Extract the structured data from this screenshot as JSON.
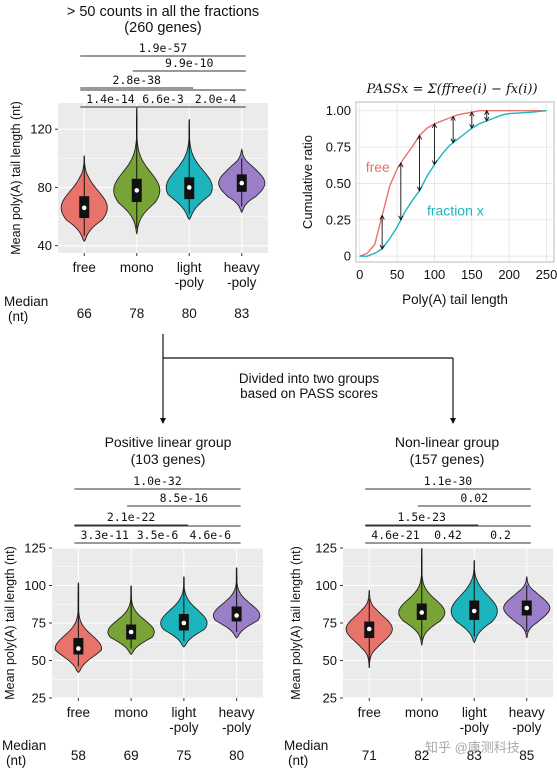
{
  "top_title": {
    "line1": "> 50 counts in all the fractions",
    "line2": "(260 genes)"
  },
  "arrow_text": {
    "line1": "Divided into two groups",
    "line2": "based on PASS scores"
  },
  "median_label": {
    "line1": "Median",
    "line2": "(nt)"
  },
  "colors": {
    "free": "#e8736b",
    "mono": "#78a437",
    "light": "#1cb5bd",
    "heavy": "#9b7ec8",
    "panel": "#ebebeb",
    "grid": "#ffffff"
  },
  "watermark": "知乎 @康测科技",
  "chart_data": [
    {
      "id": "top",
      "type": "violin",
      "ylabel": "Mean poly(A) tail length (nt)",
      "ylim": [
        35,
        138
      ],
      "yticks": [
        40,
        80,
        120
      ],
      "categories": [
        "free",
        "mono",
        "light\n-poly",
        "heavy\n-poly"
      ],
      "medians": [
        66,
        78,
        80,
        83
      ],
      "q1": [
        59,
        70,
        72,
        77
      ],
      "q3": [
        74,
        86,
        87,
        89
      ],
      "min": [
        43,
        48,
        58,
        63
      ],
      "max": [
        102,
        135,
        127,
        106
      ],
      "pvalues": [
        {
          "from": 0,
          "to": 3,
          "label": "1.9e-57"
        },
        {
          "from": 1,
          "to": 3,
          "label": "9.9e-10"
        },
        {
          "from": 0,
          "to": 2,
          "label": "2.8e-38"
        },
        {
          "from": 0,
          "to": 1,
          "label": "1.4e-14"
        },
        {
          "from": 1,
          "to": 2,
          "label": "6.6e-3"
        },
        {
          "from": 2,
          "to": 3,
          "label": "2.0e-4"
        }
      ]
    },
    {
      "id": "left",
      "type": "violin",
      "title": "Positive linear group",
      "subtitle": "(103 genes)",
      "ylabel": "Mean poly(A) tail length (nt)",
      "ylim": [
        25,
        125
      ],
      "yticks": [
        25,
        50,
        75,
        100,
        125
      ],
      "categories": [
        "free",
        "mono",
        "light\n-poly",
        "heavy\n-poly"
      ],
      "medians": [
        58,
        69,
        75,
        80
      ],
      "q1": [
        54,
        64,
        70,
        76
      ],
      "q3": [
        65,
        74,
        81,
        86
      ],
      "min": [
        42,
        54,
        59,
        65
      ],
      "max": [
        102,
        100,
        106,
        112
      ],
      "pvalues": [
        {
          "from": 0,
          "to": 3,
          "label": "1.0e-32"
        },
        {
          "from": 1,
          "to": 3,
          "label": "8.5e-16"
        },
        {
          "from": 0,
          "to": 2,
          "label": "2.1e-22"
        },
        {
          "from": 0,
          "to": 1,
          "label": "3.3e-11"
        },
        {
          "from": 1,
          "to": 2,
          "label": "3.5e-6"
        },
        {
          "from": 2,
          "to": 3,
          "label": "4.6e-6"
        }
      ]
    },
    {
      "id": "right",
      "type": "violin",
      "title": "Non-linear group",
      "subtitle": "(157 genes)",
      "ylabel": "Mean poly(A) tail length (nt)",
      "ylim": [
        25,
        125
      ],
      "yticks": [
        25,
        50,
        75,
        100,
        125
      ],
      "categories": [
        "free",
        "mono",
        "light\n-poly",
        "heavy\n-poly"
      ],
      "medians": [
        71,
        82,
        83,
        85
      ],
      "q1": [
        65,
        77,
        77,
        80
      ],
      "q3": [
        76,
        88,
        90,
        90
      ],
      "min": [
        45,
        60,
        62,
        65
      ],
      "max": [
        97,
        125,
        117,
        106
      ],
      "pvalues": [
        {
          "from": 0,
          "to": 3,
          "label": "1.1e-30"
        },
        {
          "from": 1,
          "to": 3,
          "label": "0.02"
        },
        {
          "from": 0,
          "to": 2,
          "label": "1.5e-23"
        },
        {
          "from": 0,
          "to": 1,
          "label": "4.6e-21"
        },
        {
          "from": 1,
          "to": 2,
          "label": "0.42"
        },
        {
          "from": 2,
          "to": 3,
          "label": "0.2"
        }
      ]
    },
    {
      "id": "cdf",
      "type": "line",
      "formula": "PASSx = Σ(ffree(i) − fx(i))",
      "xlabel": "Poly(A) tail length",
      "ylabel": "Cumulative ratio",
      "xlim": [
        -5,
        260
      ],
      "ylim": [
        -0.04,
        1.06
      ],
      "xticks": [
        0,
        50,
        100,
        150,
        200,
        250
      ],
      "yticks": [
        0,
        0.25,
        0.5,
        0.75,
        1.0
      ],
      "ytick_labels": [
        "0",
        "0.25",
        "0.50",
        "0.75",
        "1.00"
      ],
      "series": [
        {
          "name": "free",
          "color": "#e8736b",
          "x": [
            0,
            10,
            20,
            30,
            40,
            50,
            60,
            70,
            80,
            90,
            100,
            110,
            120,
            130,
            140,
            150,
            160,
            170,
            180,
            200,
            250
          ],
          "y": [
            0,
            0.02,
            0.08,
            0.28,
            0.48,
            0.6,
            0.68,
            0.75,
            0.83,
            0.88,
            0.91,
            0.93,
            0.95,
            0.97,
            0.98,
            0.99,
            1.0,
            1.0,
            1.0,
            1.0,
            1.0
          ]
        },
        {
          "name": "fraction x",
          "color": "#1cb5bd",
          "x": [
            0,
            10,
            20,
            30,
            40,
            50,
            60,
            70,
            80,
            90,
            100,
            110,
            120,
            130,
            140,
            150,
            160,
            170,
            180,
            190,
            200,
            230,
            250
          ],
          "y": [
            0,
            0,
            0.02,
            0.05,
            0.12,
            0.2,
            0.3,
            0.38,
            0.45,
            0.55,
            0.63,
            0.7,
            0.76,
            0.8,
            0.84,
            0.88,
            0.91,
            0.93,
            0.95,
            0.97,
            0.98,
            0.99,
            1.0
          ]
        }
      ],
      "diff_arrows_x": [
        30,
        55,
        80,
        100,
        125,
        150,
        170
      ]
    }
  ]
}
